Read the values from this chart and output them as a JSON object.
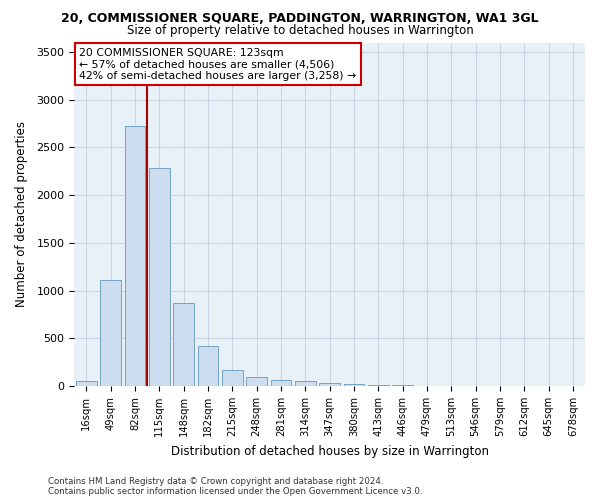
{
  "title": "20, COMMISSIONER SQUARE, PADDINGTON, WARRINGTON, WA1 3GL",
  "subtitle": "Size of property relative to detached houses in Warrington",
  "xlabel": "Distribution of detached houses by size in Warrington",
  "ylabel": "Number of detached properties",
  "bar_color": "#ccddef",
  "bar_edge_color": "#6699bb",
  "categories": [
    "16sqm",
    "49sqm",
    "82sqm",
    "115sqm",
    "148sqm",
    "182sqm",
    "215sqm",
    "248sqm",
    "281sqm",
    "314sqm",
    "347sqm",
    "380sqm",
    "413sqm",
    "446sqm",
    "479sqm",
    "513sqm",
    "546sqm",
    "579sqm",
    "612sqm",
    "645sqm",
    "678sqm"
  ],
  "values": [
    55,
    1110,
    2720,
    2280,
    870,
    420,
    170,
    95,
    60,
    50,
    30,
    20,
    10,
    10,
    3,
    2,
    1,
    1,
    0,
    0,
    0
  ],
  "vline_pos": 2.5,
  "vline_color": "#aa0000",
  "annotation_text": "20 COMMISSIONER SQUARE: 123sqm\n← 57% of detached houses are smaller (4,506)\n42% of semi-detached houses are larger (3,258) →",
  "annotation_box_color": "#ffffff",
  "annotation_box_edge": "#cc0000",
  "ylim": [
    0,
    3600
  ],
  "yticks": [
    0,
    500,
    1000,
    1500,
    2000,
    2500,
    3000,
    3500
  ],
  "grid_color": "#c8d4e0",
  "plot_bg_color": "#e8f0f8",
  "fig_bg_color": "#ffffff",
  "footer_line1": "Contains HM Land Registry data © Crown copyright and database right 2024.",
  "footer_line2": "Contains public sector information licensed under the Open Government Licence v3.0."
}
